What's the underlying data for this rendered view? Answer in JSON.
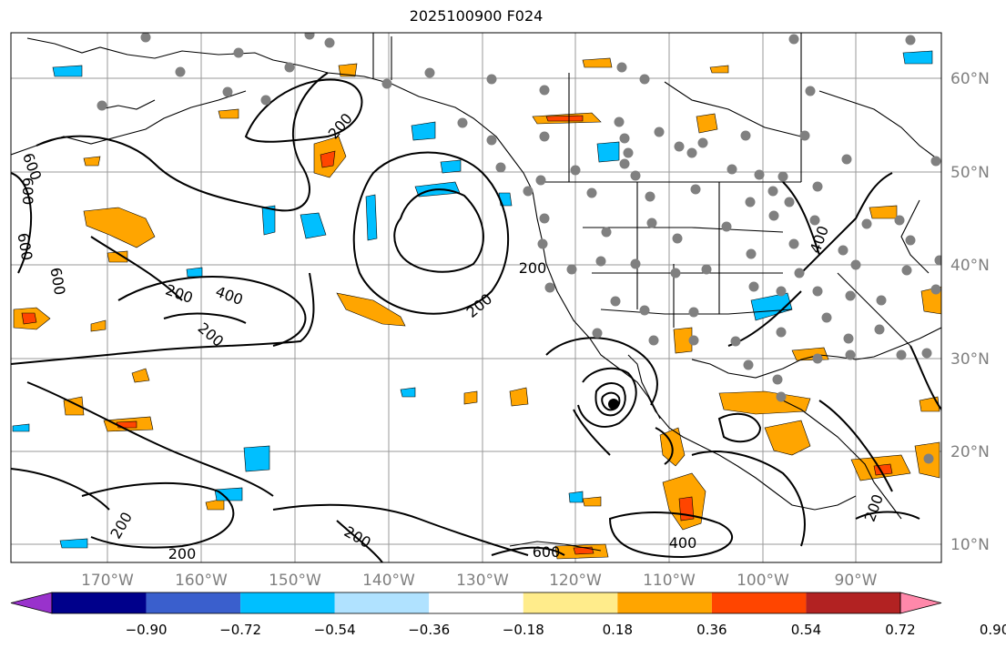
{
  "title": "2025100900 F024",
  "map": {
    "lon_labels": [
      "170°W",
      "160°W",
      "150°W",
      "140°W",
      "130°W",
      "120°W",
      "110°W",
      "100°W",
      "90°W"
    ],
    "lat_labels": [
      "60°N",
      "50°N",
      "40°N",
      "30°N",
      "20°N",
      "10°N"
    ],
    "contour_labels": [
      "200",
      "200",
      "200",
      "200",
      "200",
      "200",
      "200",
      "200",
      "400",
      "400",
      "400",
      "600",
      "600",
      "600",
      "600",
      "600",
      "200"
    ],
    "colors": {
      "land_outline": "#000000",
      "grid": "#9a9a9a",
      "station": "#808080",
      "contour": "#000000",
      "axis_label": "#7f7f7f"
    }
  },
  "colorbar": {
    "ticks": [
      "−0.90",
      "−0.72",
      "−0.54",
      "−0.36",
      "−0.18",
      "0.18",
      "0.36",
      "0.54",
      "0.72",
      "0.90"
    ],
    "colors": [
      "#9932cc",
      "#00008b",
      "#3a5fcd",
      "#00bfff",
      "#b0e2ff",
      "#ffffff",
      "#ffec8b",
      "#ffa500",
      "#ff4500",
      "#b22222",
      "#ff88aa"
    ]
  }
}
